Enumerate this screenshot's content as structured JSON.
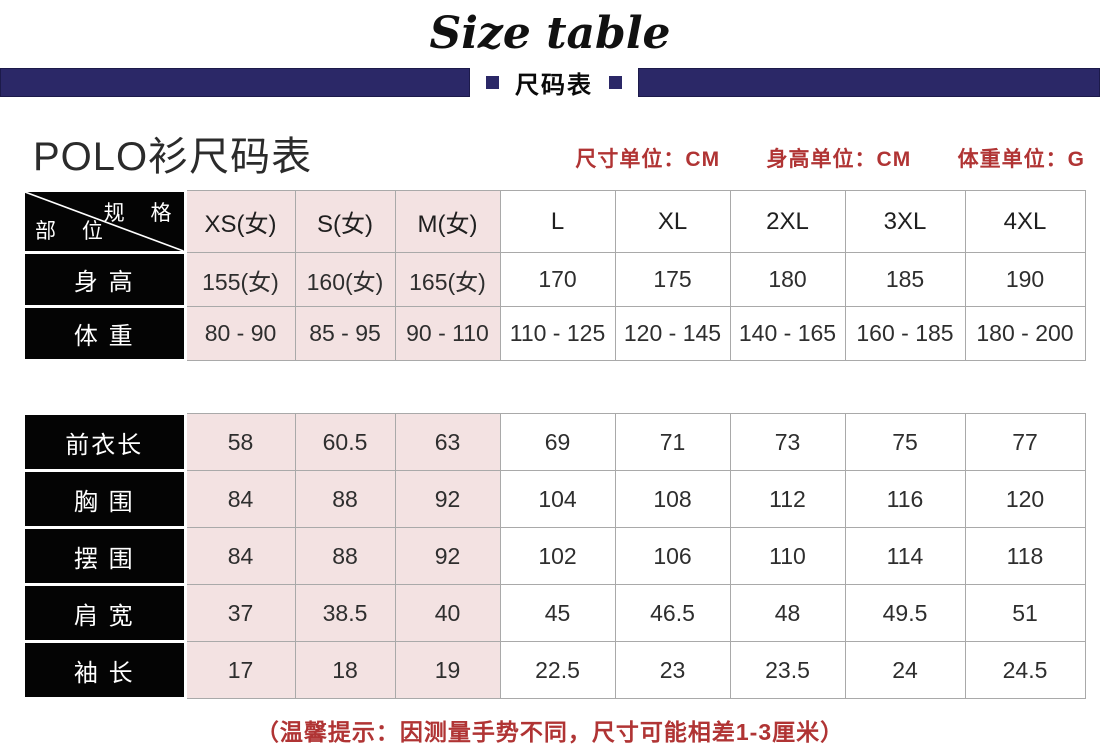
{
  "header": {
    "title_en": "Size table",
    "banner_label": "尺码表",
    "page_title": "POLO衫尺码表",
    "units": {
      "size": "尺寸单位：CM",
      "height": "身高单位：CM",
      "weight": "体重单位：G"
    }
  },
  "table1": {
    "corner": {
      "top": "规 格",
      "bottom": "部 位"
    },
    "columns": [
      "XS(女)",
      "S(女)",
      "M(女)",
      "L",
      "XL",
      "2XL",
      "3XL",
      "4XL"
    ],
    "rows": [
      {
        "label": "身 高",
        "values": [
          "155(女)",
          "160(女)",
          "165(女)",
          "170",
          "175",
          "180",
          "185",
          "190"
        ]
      },
      {
        "label": "体 重",
        "values": [
          "80 - 90",
          "85 - 95",
          "90 - 110",
          "110 - 125",
          "120 - 145",
          "140 - 165",
          "160 - 185",
          "180 - 200"
        ]
      }
    ]
  },
  "table2": {
    "rows": [
      {
        "label": "前衣长",
        "values": [
          "58",
          "60.5",
          "63",
          "69",
          "71",
          "73",
          "75",
          "77"
        ]
      },
      {
        "label": "胸 围",
        "values": [
          "84",
          "88",
          "92",
          "104",
          "108",
          "112",
          "116",
          "120"
        ]
      },
      {
        "label": "摆 围",
        "values": [
          "84",
          "88",
          "92",
          "102",
          "106",
          "110",
          "114",
          "118"
        ]
      },
      {
        "label": "肩 宽",
        "values": [
          "37",
          "38.5",
          "40",
          "45",
          "46.5",
          "48",
          "49.5",
          "51"
        ]
      },
      {
        "label": "袖 长",
        "values": [
          "17",
          "18",
          "19",
          "22.5",
          "23",
          "23.5",
          "24",
          "24.5"
        ]
      }
    ]
  },
  "footer": {
    "note": "（温馨提示：因测量手势不同，尺寸可能相差1-3厘米）"
  },
  "colors": {
    "navy": "#2b2867",
    "red": "#b03434",
    "pink": "#f3e2e2",
    "grid_gray": "#a9a9a9",
    "label_black": "#040404"
  },
  "chart_data": [
    {
      "type": "table",
      "title": "POLO衫尺码表 (身高/体重)",
      "corner_header": {
        "top_right": "规格",
        "bottom_left": "部位"
      },
      "columns": [
        "XS(女)",
        "S(女)",
        "M(女)",
        "L",
        "XL",
        "2XL",
        "3XL",
        "4XL"
      ],
      "rows": [
        {
          "label": "身高",
          "values": [
            "155(女)",
            "160(女)",
            "165(女)",
            "170",
            "175",
            "180",
            "185",
            "190"
          ],
          "unit": "CM"
        },
        {
          "label": "体重",
          "values": [
            "80 - 90",
            "85 - 95",
            "90 - 110",
            "110 - 125",
            "120 - 145",
            "140 - 165",
            "160 - 185",
            "180 - 200"
          ],
          "unit": "G"
        }
      ]
    },
    {
      "type": "table",
      "title": "POLO衫尺码表 (测量尺寸)",
      "columns": [
        "XS(女)",
        "S(女)",
        "M(女)",
        "L",
        "XL",
        "2XL",
        "3XL",
        "4XL"
      ],
      "rows": [
        {
          "label": "前衣长",
          "values": [
            58,
            60.5,
            63,
            69,
            71,
            73,
            75,
            77
          ],
          "unit": "CM"
        },
        {
          "label": "胸围",
          "values": [
            84,
            88,
            92,
            104,
            108,
            112,
            116,
            120
          ],
          "unit": "CM"
        },
        {
          "label": "摆围",
          "values": [
            84,
            88,
            92,
            102,
            106,
            110,
            114,
            118
          ],
          "unit": "CM"
        },
        {
          "label": "肩宽",
          "values": [
            37,
            38.5,
            40,
            45,
            46.5,
            48,
            49.5,
            51
          ],
          "unit": "CM"
        },
        {
          "label": "袖长",
          "values": [
            17,
            18,
            19,
            22.5,
            23,
            23.5,
            24,
            24.5
          ],
          "unit": "CM"
        }
      ]
    }
  ]
}
